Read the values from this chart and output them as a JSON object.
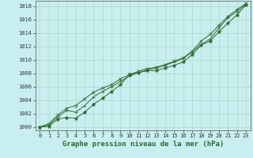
{
  "xlabel": "Graphe pression niveau de la mer (hPa)",
  "background_color": "#c8eef0",
  "grid_color": "#b0d8cc",
  "line_color": "#2d6b2d",
  "x_values": [
    0,
    1,
    2,
    3,
    4,
    5,
    6,
    7,
    8,
    9,
    10,
    11,
    12,
    13,
    14,
    15,
    16,
    17,
    18,
    19,
    20,
    21,
    22,
    23
  ],
  "series": [
    [
      1000.0,
      1000.1,
      1001.2,
      1001.4,
      1001.3,
      1002.2,
      1003.4,
      1004.3,
      1005.3,
      1006.3,
      1007.8,
      1008.1,
      1008.4,
      1008.4,
      1008.8,
      1009.2,
      1009.7,
      1010.8,
      1012.2,
      1012.8,
      1014.2,
      1015.5,
      1016.7,
      1018.2
    ],
    [
      1000.0,
      1000.3,
      1001.5,
      1002.5,
      1002.2,
      1003.2,
      1004.5,
      1005.3,
      1006.0,
      1006.8,
      1007.6,
      1008.1,
      1008.5,
      1008.8,
      1009.2,
      1009.7,
      1010.2,
      1011.2,
      1012.3,
      1013.1,
      1014.8,
      1016.3,
      1017.2,
      1018.3
    ],
    [
      1000.0,
      1000.5,
      1001.8,
      1002.8,
      1003.2,
      1004.2,
      1005.2,
      1005.8,
      1006.3,
      1007.2,
      1007.8,
      1008.3,
      1008.7,
      1008.9,
      1009.3,
      1009.8,
      1010.3,
      1011.3,
      1012.8,
      1013.8,
      1015.2,
      1016.5,
      1017.5,
      1018.4
    ]
  ],
  "markers": [
    "*",
    "+",
    "x"
  ],
  "marker_sizes": [
    3.5,
    3.5,
    3.0
  ],
  "ylim": [
    999.5,
    1018.8
  ],
  "ytick_min": 1000,
  "ytick_max": 1018,
  "ytick_step": 2,
  "xticks": [
    0,
    1,
    2,
    3,
    4,
    5,
    6,
    7,
    8,
    9,
    10,
    11,
    12,
    13,
    14,
    15,
    16,
    17,
    18,
    19,
    20,
    21,
    22,
    23
  ],
  "tick_fontsize": 5.0,
  "xlabel_fontsize": 6.5,
  "line_width": 0.7
}
